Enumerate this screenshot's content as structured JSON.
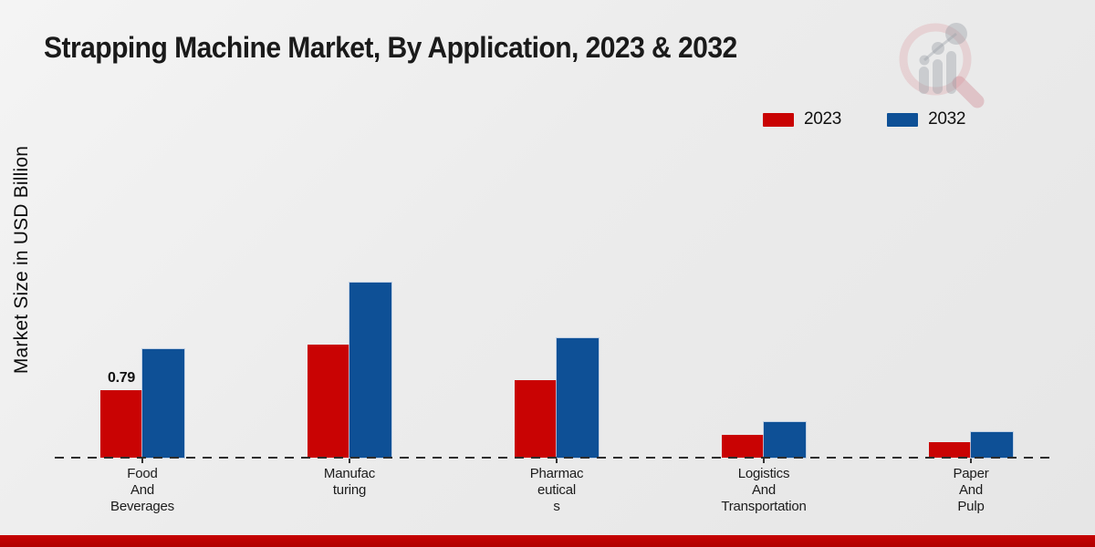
{
  "page": {
    "background_top_color": "#f4f4f4",
    "background_bottom_color": "#e6e6e6",
    "footer_bar_color": "#bf0000"
  },
  "header": {
    "title": "Strapping Machine Market, By Application, 2023 & 2032",
    "logo_icon": "market-research-future-magnifier-watermark"
  },
  "legend": {
    "position": "top-right",
    "items": [
      {
        "label": "2023",
        "color": "#c90303"
      },
      {
        "label": "2032",
        "color": "#0e5096"
      }
    ]
  },
  "chart_data": {
    "type": "bar",
    "title": "Strapping Machine Market, By Application, 2023 & 2032",
    "xlabel": "",
    "ylabel": "Market Size in USD Billion",
    "categories": [
      "Food And Beverages",
      "Manufacturing",
      "Pharmaceuticals",
      "Logistics And Transportation",
      "Paper And Pulp"
    ],
    "category_label_lines": [
      [
        "Food",
        "And",
        "Beverages"
      ],
      [
        "Manufac",
        "turing"
      ],
      [
        "Pharmac",
        "eutical",
        "s"
      ],
      [
        "Logistics",
        "And",
        "Transportation"
      ],
      [
        "Paper",
        "And",
        "Pulp"
      ]
    ],
    "series": [
      {
        "name": "2023",
        "color": "#c90303",
        "values": [
          0.79,
          1.32,
          0.9,
          0.27,
          0.18
        ]
      },
      {
        "name": "2032",
        "color": "#0e5096",
        "values": [
          1.27,
          2.04,
          1.39,
          0.42,
          0.3
        ]
      }
    ],
    "value_labels": [
      {
        "series_index": 0,
        "category_index": 0,
        "text": "0.79"
      }
    ],
    "ylim": [
      0,
      2.5
    ],
    "grid": false,
    "baseline_style": "dashed",
    "legend_position": "top-right",
    "units": "USD Billion"
  }
}
